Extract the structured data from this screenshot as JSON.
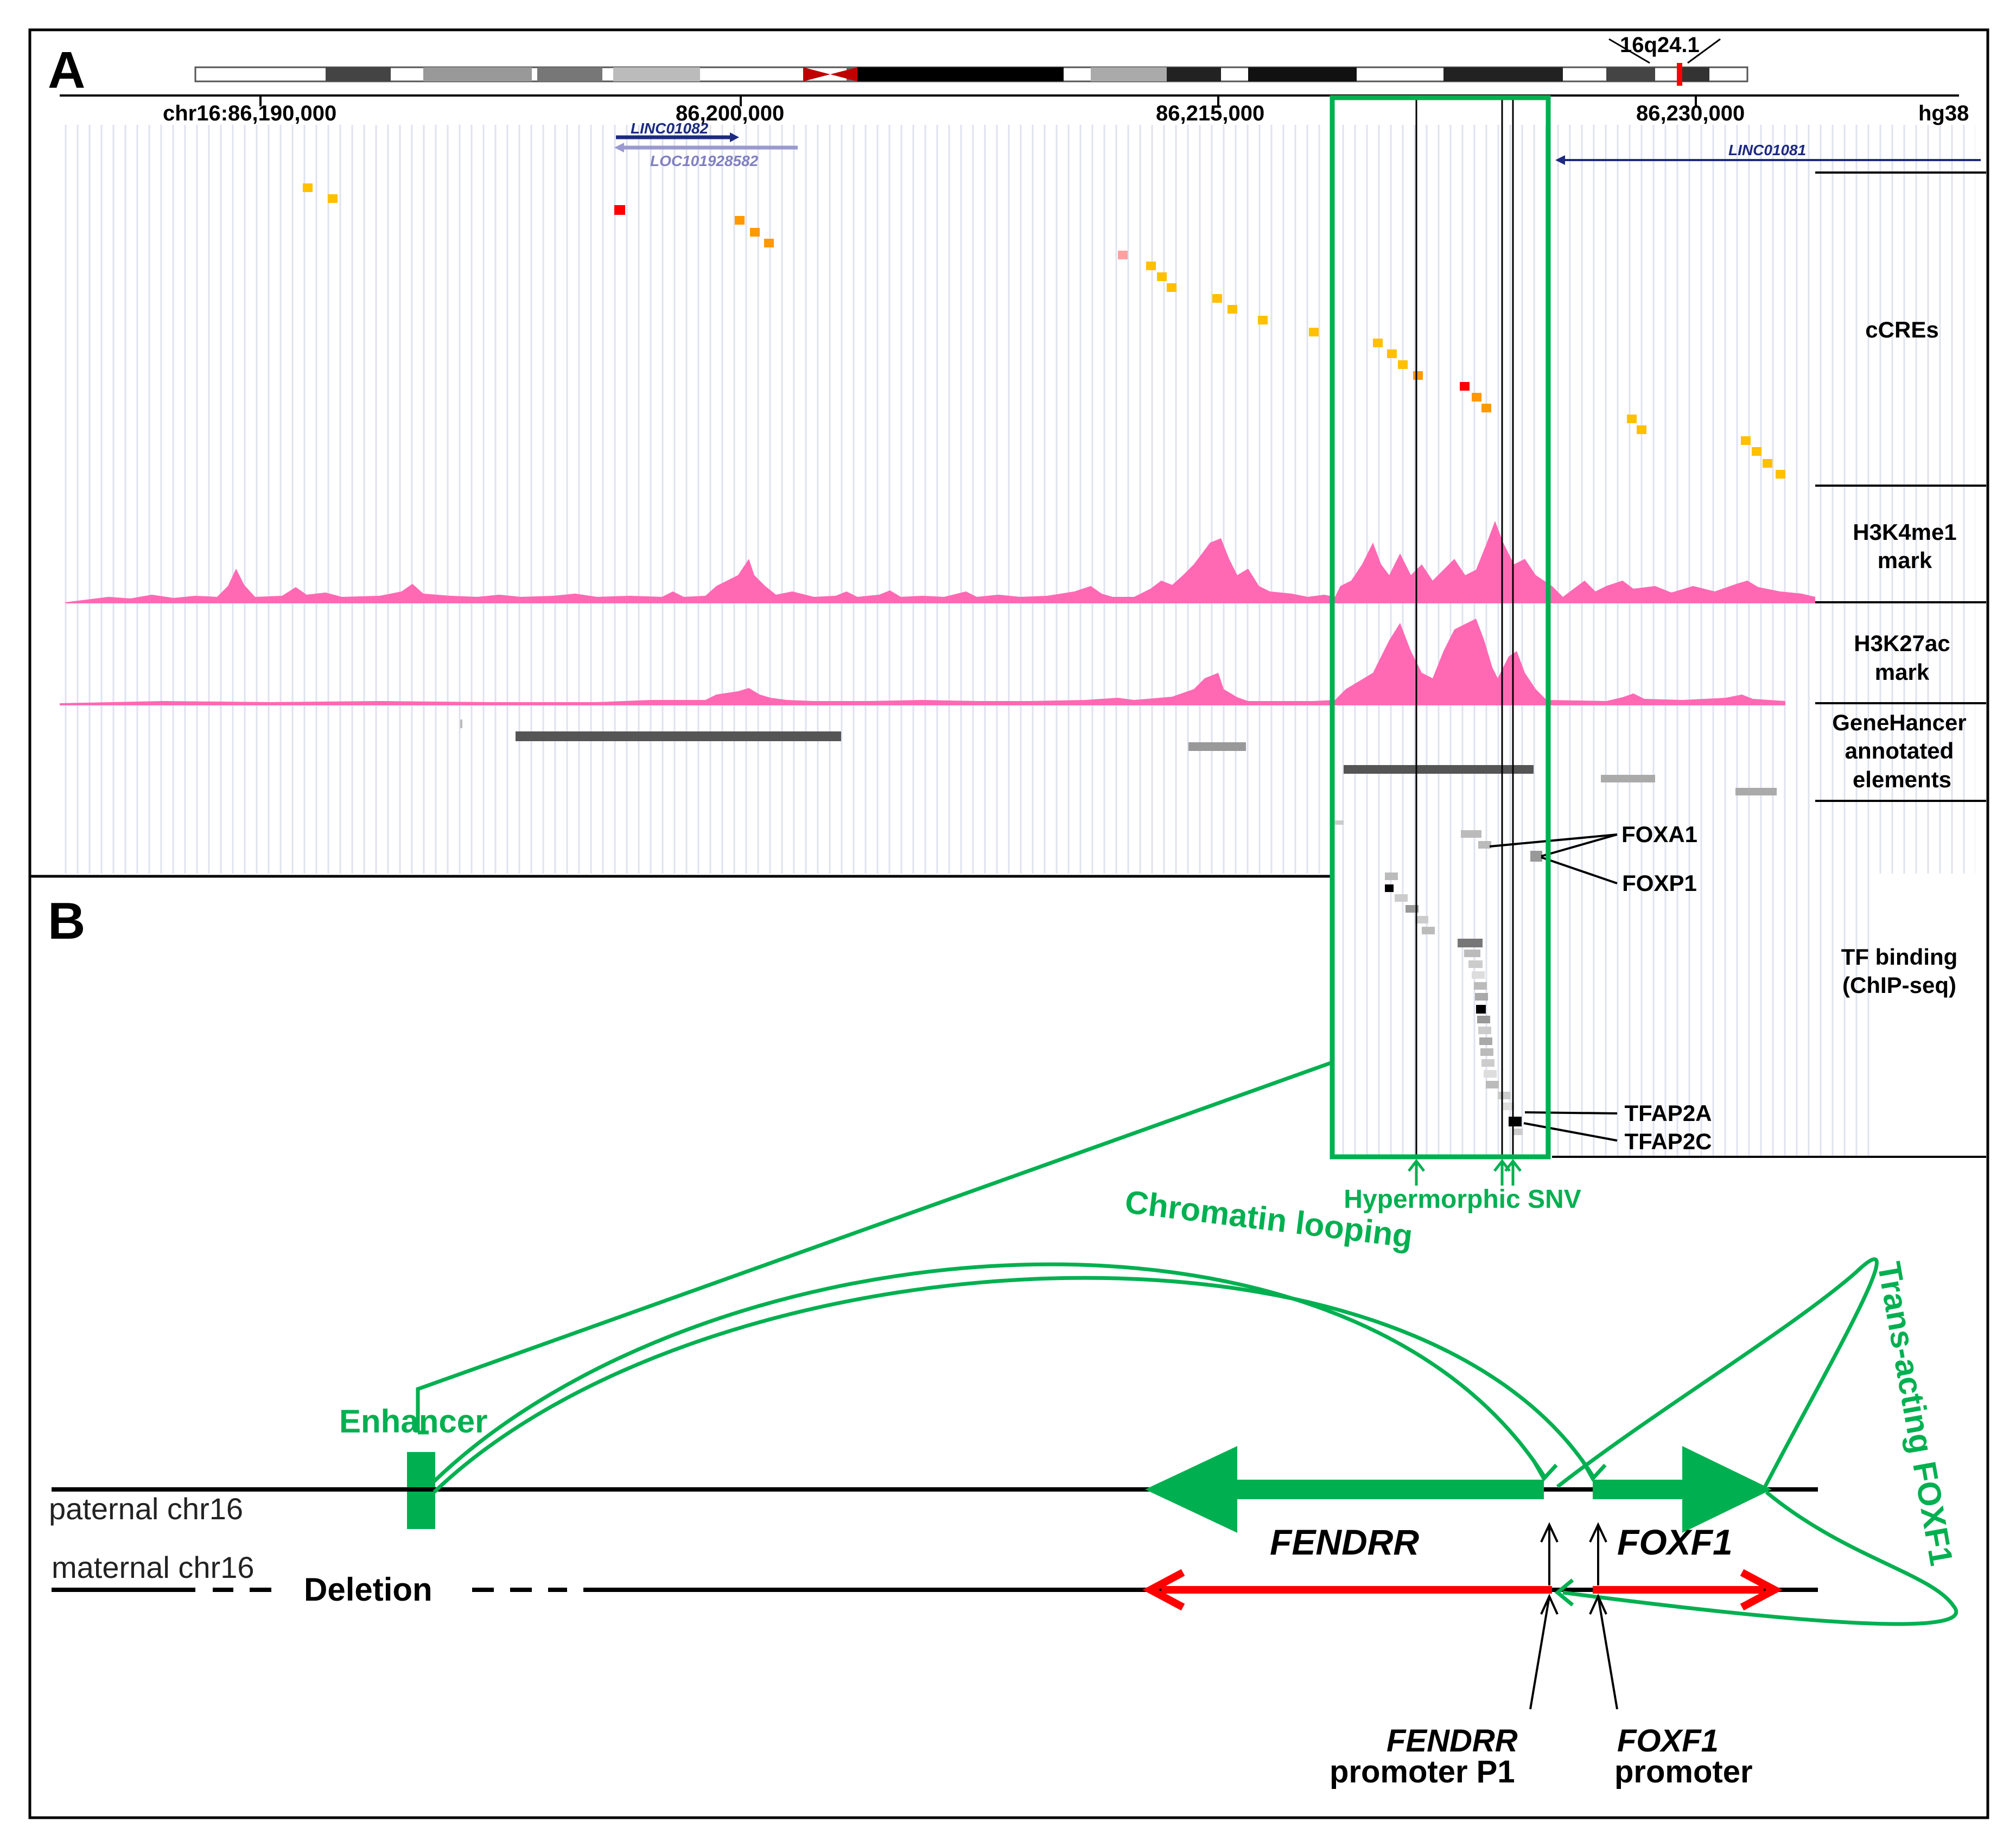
{
  "panel_a": {
    "letter": "A",
    "cytoband": "16q24.1",
    "coords": [
      "chr16:86,190,000",
      "86,200,000",
      "86,215,000",
      "86,230,000"
    ],
    "assembly": "hg38",
    "genes": [
      "LINC01082",
      "LOC101928582",
      "LINC01081"
    ],
    "tracks": {
      "ccres": "cCREs",
      "h3k4me1_line1": "H3K4me1",
      "h3k4me1_line2": "mark",
      "h3k27ac_line1": "H3K27ac",
      "h3k27ac_line2": "mark",
      "genehancer_line1": "GeneHancer",
      "genehancer_line2": "annotated",
      "genehancer_line3": "elements",
      "tf_line1": "TF binding",
      "tf_line2": "(ChIP-seq)"
    },
    "tfs": [
      "FOXA1",
      "FOXP1",
      "TFAP2A",
      "TFAP2C"
    ],
    "snv_label": "Hypermorphic SNV",
    "colors": {
      "highlight": "#00b050",
      "signal": "#ff69b4",
      "ccre_yellow": "#ffc000",
      "ccre_orange": "#ff9900",
      "ccre_red": "#ff0000"
    }
  },
  "panel_b": {
    "letter": "B",
    "enhancer": "Enhancer",
    "chromatin_looping": "Chromatin looping",
    "trans_acting": "Trans-acting FOXF1",
    "paternal": "paternal chr16",
    "maternal": "maternal chr16",
    "deletion": "Deletion",
    "gene_fendrr": "FENDRR",
    "gene_foxf1": "FOXF1",
    "fendrr_promoter_line1": "FENDRR",
    "fendrr_promoter_line2": "promoter P1",
    "foxf1_promoter_line1": "FOXF1",
    "foxf1_promoter_line2": "promoter",
    "colors": {
      "active": "#00b050",
      "reduced": "#ff0000"
    }
  }
}
